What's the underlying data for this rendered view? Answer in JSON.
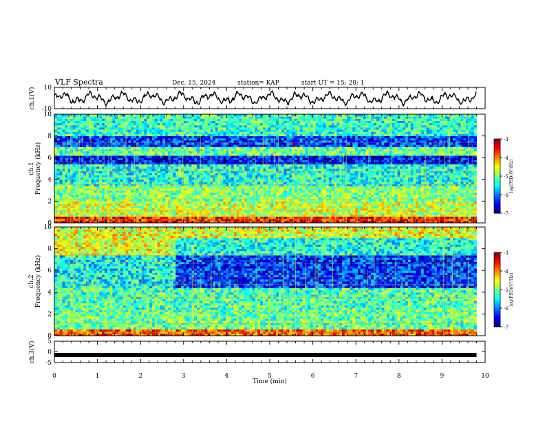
{
  "header": {
    "title": "VLF Spectra",
    "date": "Dec. 15, 2024",
    "station": "station= KAP",
    "start_ut": "start  UT  =   15: 20: 1"
  },
  "chart_data": [
    {
      "type": "line",
      "name": "ch1-waveform",
      "ylabel": "ch.1(V)",
      "ylim": [
        -10,
        10
      ],
      "yticks": [
        "10",
        "-10"
      ],
      "xlim": [
        0,
        10
      ],
      "note": "continuous oscillating waveform between approx -6 and 6 V, ending at t≈9.8 min"
    },
    {
      "type": "heatmap",
      "name": "ch1-spectrogram",
      "ylabel_top": "ch.1",
      "ylabel": "Frequency  (kHz)",
      "ylim": [
        0,
        10
      ],
      "yticks": [
        "0",
        "2",
        "4",
        "6",
        "8",
        "10"
      ],
      "xlim": [
        0,
        10
      ],
      "data_end_min": 9.8,
      "colorbar": {
        "label": "log(PSD)(V²/Hz)",
        "range": [
          -7,
          -3
        ],
        "ticks": [
          "-3",
          "-4",
          "-5",
          "-6",
          "-7"
        ]
      },
      "bands": [
        {
          "f0": 0.0,
          "f1": 0.6,
          "level": -3.6
        },
        {
          "f0": 0.6,
          "f1": 2.0,
          "level": -4.7
        },
        {
          "f0": 2.0,
          "f1": 3.5,
          "level": -5.0
        },
        {
          "f0": 3.5,
          "f1": 5.5,
          "level": -5.4
        },
        {
          "f0": 5.5,
          "f1": 6.3,
          "level": -6.5
        },
        {
          "f0": 6.3,
          "f1": 6.9,
          "level": -5.1
        },
        {
          "f0": 6.9,
          "f1": 8.0,
          "level": -6.3
        },
        {
          "f0": 8.0,
          "f1": 10.0,
          "level": -5.3
        }
      ]
    },
    {
      "type": "heatmap",
      "name": "ch2-spectrogram",
      "ylabel_top": "ch.2",
      "ylabel": "Frequency  (kHz)",
      "ylim": [
        0,
        10
      ],
      "yticks": [
        "0",
        "2",
        "4",
        "6",
        "8",
        "10"
      ],
      "xlim": [
        0,
        10
      ],
      "data_end_min": 9.8,
      "colorbar": {
        "label": "log(PSD)(V²/Hz)",
        "range": [
          -7,
          -3
        ],
        "ticks": [
          "-3",
          "-4",
          "-5",
          "-6",
          "-7"
        ]
      },
      "bands": [
        {
          "f0": 0.0,
          "f1": 0.6,
          "level": -3.8
        },
        {
          "f0": 0.6,
          "f1": 2.5,
          "level": -5.1
        },
        {
          "f0": 2.5,
          "f1": 4.5,
          "level": -5.2
        },
        {
          "f0": 4.5,
          "f1": 7.5,
          "level": -5.5
        },
        {
          "f0": 7.5,
          "f1": 10.0,
          "level": -4.6
        }
      ],
      "shift": {
        "t_min": 2.8,
        "f0": 4.5,
        "f1": 9.0,
        "delta": -0.8
      }
    },
    {
      "type": "line",
      "name": "ch3-waveform",
      "ylabel": "ch.3(V)",
      "ylim": [
        -5,
        5
      ],
      "yticks": [
        "5",
        "0",
        "-5"
      ],
      "xlim": [
        0,
        10
      ],
      "level": -1.5,
      "note": "solid thick black band near -1.5 V across the record"
    }
  ],
  "xaxis": {
    "label": "Time  (min)",
    "ticks": [
      "0",
      "1",
      "2",
      "3",
      "4",
      "5",
      "6",
      "7",
      "8",
      "9",
      "10"
    ]
  }
}
